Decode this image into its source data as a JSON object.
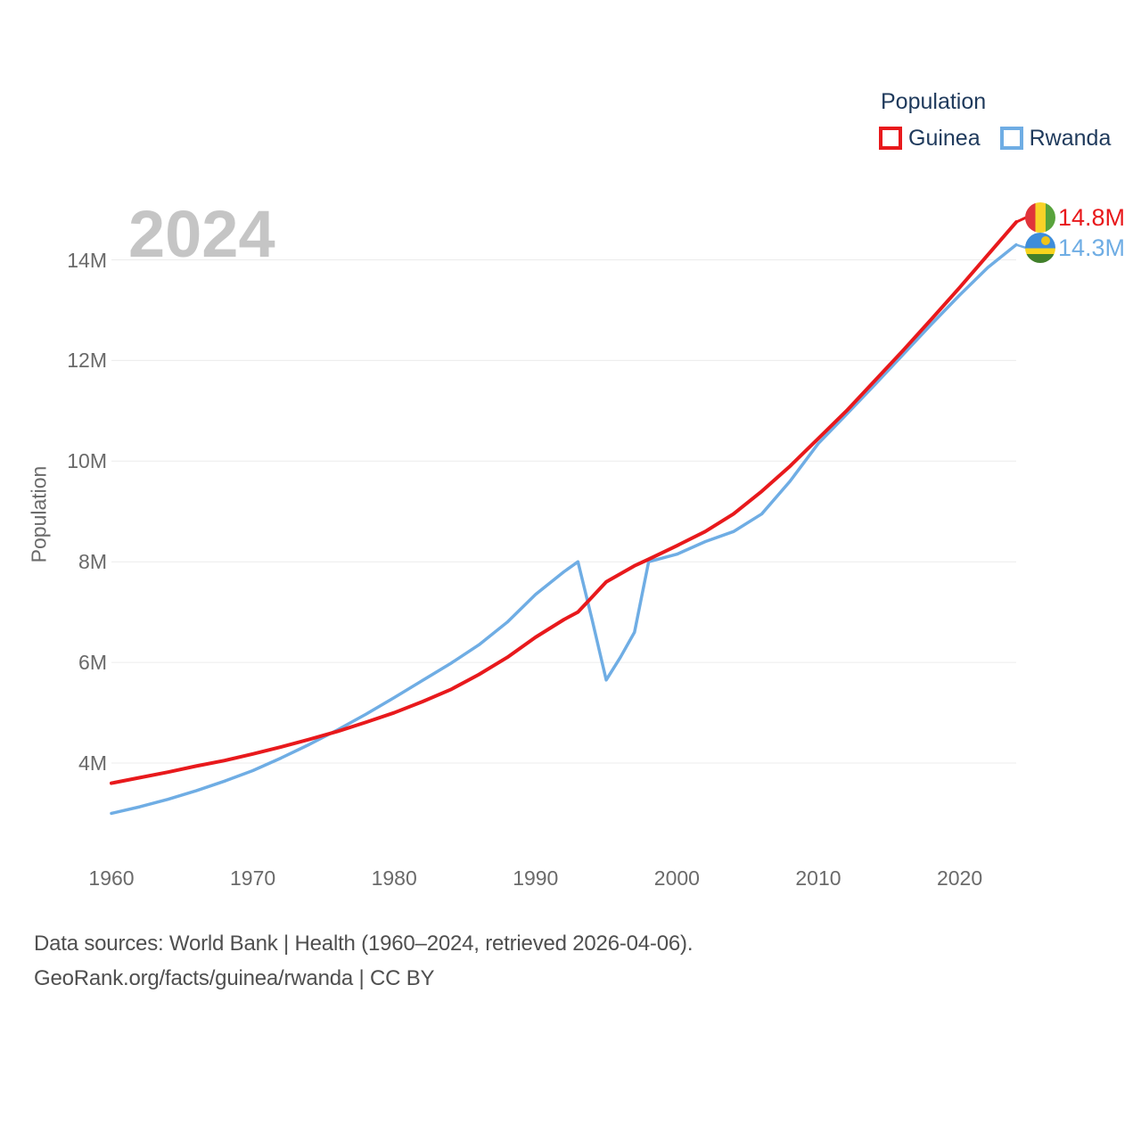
{
  "page": {
    "background": "#ffffff"
  },
  "legend": {
    "title": "Population",
    "items": [
      {
        "label": "Guinea",
        "color": "#e8191c"
      },
      {
        "label": "Rwanda",
        "color": "#6fade4"
      }
    ]
  },
  "watermark": "2024",
  "y_axis": {
    "title": "Population",
    "ticks": [
      {
        "label": "14M",
        "value": 14
      },
      {
        "label": "12M",
        "value": 12
      },
      {
        "label": "10M",
        "value": 10
      },
      {
        "label": "8M",
        "value": 8
      },
      {
        "label": "6M",
        "value": 6
      },
      {
        "label": "4M",
        "value": 4
      }
    ]
  },
  "x_axis": {
    "ticks": [
      {
        "label": "1960",
        "year": 1960
      },
      {
        "label": "1970",
        "year": 1970
      },
      {
        "label": "1980",
        "year": 1980
      },
      {
        "label": "1990",
        "year": 1990
      },
      {
        "label": "2000",
        "year": 2000
      },
      {
        "label": "2010",
        "year": 2010
      },
      {
        "label": "2020",
        "year": 2020
      }
    ]
  },
  "chart_data": {
    "type": "line",
    "title": "Population",
    "xlabel": "",
    "ylabel": "Population",
    "xlim": [
      1960,
      2024
    ],
    "ylim": [
      2.8,
      15.2
    ],
    "grid": "horizontal-only",
    "legend_position": "top-right",
    "x": [
      1960,
      1962,
      1964,
      1966,
      1968,
      1970,
      1972,
      1974,
      1976,
      1978,
      1980,
      1982,
      1984,
      1986,
      1988,
      1990,
      1992,
      1993,
      1994,
      1995,
      1996,
      1997,
      1998,
      2000,
      2002,
      2004,
      2006,
      2008,
      2010,
      2012,
      2014,
      2016,
      2018,
      2020,
      2022,
      2024
    ],
    "series": [
      {
        "name": "Guinea",
        "color": "#e8191c",
        "end_label": "14.8M",
        "values": [
          3.6,
          3.71,
          3.82,
          3.94,
          4.05,
          4.18,
          4.32,
          4.47,
          4.63,
          4.81,
          5.0,
          5.22,
          5.46,
          5.76,
          6.1,
          6.5,
          6.85,
          7.0,
          7.3,
          7.6,
          7.76,
          7.92,
          8.05,
          8.32,
          8.6,
          8.95,
          9.4,
          9.9,
          10.45,
          11.0,
          11.6,
          12.2,
          12.82,
          13.45,
          14.1,
          14.75
        ]
      },
      {
        "name": "Rwanda",
        "color": "#6fade4",
        "end_label": "14.3M",
        "values": [
          3.0,
          3.13,
          3.28,
          3.45,
          3.64,
          3.85,
          4.1,
          4.37,
          4.66,
          4.97,
          5.3,
          5.64,
          5.98,
          6.35,
          6.8,
          7.35,
          7.8,
          8.0,
          6.85,
          5.65,
          6.1,
          6.6,
          8.0,
          8.15,
          8.4,
          8.6,
          8.95,
          9.6,
          10.35,
          10.93,
          11.52,
          12.12,
          12.72,
          13.3,
          13.85,
          14.3
        ]
      }
    ]
  },
  "end_labels": [
    {
      "text": "14.8M",
      "color": "#e8191c",
      "flag": "guinea-flag"
    },
    {
      "text": "14.3M",
      "color": "#6fade4",
      "flag": "rwanda-flag"
    }
  ],
  "footer": {
    "line1": "Data sources: World Bank | Health (1960–2024, retrieved 2026-04-06).",
    "line2": "GeoRank.org/facts/guinea/rwanda | CC BY"
  }
}
